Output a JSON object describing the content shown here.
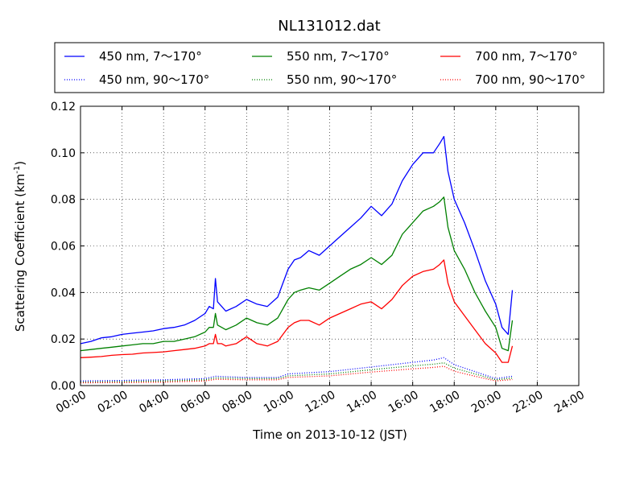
{
  "chart_data": {
    "type": "line",
    "title": "NL131012.dat",
    "xlabel": "Time on 2013-10-12 (JST)",
    "ylabel_main": "Scattering Coefficient (km",
    "ylabel_sup": "-1",
    "ylabel_end": ")",
    "xlim": [
      0,
      24
    ],
    "ylim": [
      0,
      0.12
    ],
    "grid": true,
    "legend_position": "top",
    "x_ticks": [
      0,
      2,
      4,
      6,
      8,
      10,
      12,
      14,
      16,
      18,
      20,
      22,
      24
    ],
    "x_tick_labels": [
      "00:00",
      "02:00",
      "04:00",
      "06:00",
      "08:00",
      "10:00",
      "12:00",
      "14:00",
      "16:00",
      "18:00",
      "20:00",
      "22:00",
      "24:00"
    ],
    "y_ticks": [
      0,
      0.02,
      0.04,
      0.06,
      0.08,
      0.1,
      0.12
    ],
    "y_tick_labels": [
      "0.00",
      "0.02",
      "0.04",
      "0.06",
      "0.08",
      "0.10",
      "0.12"
    ],
    "series": [
      {
        "name": "450 nm, 7～170°",
        "color": "#0000ff",
        "style": "solid",
        "x": [
          0,
          0.5,
          1,
          1.5,
          2,
          2.5,
          3,
          3.5,
          4,
          4.5,
          5,
          5.5,
          6,
          6.2,
          6.4,
          6.5,
          6.6,
          6.8,
          7,
          7.5,
          8,
          8.5,
          9,
          9.5,
          10,
          10.3,
          10.6,
          11,
          11.5,
          12,
          12.5,
          13,
          13.5,
          14,
          14.5,
          15,
          15.5,
          16,
          16.5,
          17,
          17.3,
          17.5,
          17.7,
          18,
          18.5,
          19,
          19.5,
          20,
          20.3,
          20.6,
          20.8
        ],
        "y": [
          0.018,
          0.019,
          0.0205,
          0.021,
          0.022,
          0.0225,
          0.023,
          0.0235,
          0.0245,
          0.025,
          0.026,
          0.028,
          0.031,
          0.034,
          0.033,
          0.046,
          0.036,
          0.034,
          0.032,
          0.034,
          0.037,
          0.035,
          0.034,
          0.038,
          0.05,
          0.054,
          0.055,
          0.058,
          0.056,
          0.06,
          0.064,
          0.068,
          0.072,
          0.077,
          0.073,
          0.078,
          0.088,
          0.095,
          0.1,
          0.1,
          0.104,
          0.107,
          0.092,
          0.08,
          0.07,
          0.058,
          0.045,
          0.035,
          0.025,
          0.022,
          0.041
        ]
      },
      {
        "name": "550 nm, 7～170°",
        "color": "#008000",
        "style": "solid",
        "x": [
          0,
          0.5,
          1,
          1.5,
          2,
          2.5,
          3,
          3.5,
          4,
          4.5,
          5,
          5.5,
          6,
          6.2,
          6.4,
          6.5,
          6.6,
          6.8,
          7,
          7.5,
          8,
          8.5,
          9,
          9.5,
          10,
          10.3,
          10.6,
          11,
          11.5,
          12,
          12.5,
          13,
          13.5,
          14,
          14.5,
          15,
          15.5,
          16,
          16.5,
          17,
          17.3,
          17.5,
          17.7,
          18,
          18.5,
          19,
          19.5,
          20,
          20.3,
          20.6,
          20.8
        ],
        "y": [
          0.015,
          0.0155,
          0.016,
          0.0165,
          0.017,
          0.0175,
          0.018,
          0.018,
          0.019,
          0.019,
          0.02,
          0.021,
          0.023,
          0.025,
          0.025,
          0.031,
          0.026,
          0.025,
          0.024,
          0.026,
          0.029,
          0.027,
          0.026,
          0.029,
          0.037,
          0.04,
          0.041,
          0.042,
          0.041,
          0.044,
          0.047,
          0.05,
          0.052,
          0.055,
          0.052,
          0.056,
          0.065,
          0.07,
          0.075,
          0.077,
          0.079,
          0.081,
          0.068,
          0.058,
          0.05,
          0.04,
          0.032,
          0.025,
          0.016,
          0.015,
          0.028
        ]
      },
      {
        "name": "700 nm, 7～170°",
        "color": "#ff0000",
        "style": "solid",
        "x": [
          0,
          0.5,
          1,
          1.5,
          2,
          2.5,
          3,
          3.5,
          4,
          4.5,
          5,
          5.5,
          6,
          6.2,
          6.4,
          6.5,
          6.6,
          6.8,
          7,
          7.5,
          8,
          8.5,
          9,
          9.5,
          10,
          10.3,
          10.6,
          11,
          11.5,
          12,
          12.5,
          13,
          13.5,
          14,
          14.5,
          15,
          15.5,
          16,
          16.5,
          17,
          17.3,
          17.5,
          17.7,
          18,
          18.5,
          19,
          19.5,
          20,
          20.3,
          20.6,
          20.8
        ],
        "y": [
          0.012,
          0.0122,
          0.0125,
          0.013,
          0.0133,
          0.0135,
          0.014,
          0.0142,
          0.0145,
          0.015,
          0.0155,
          0.016,
          0.017,
          0.018,
          0.018,
          0.022,
          0.018,
          0.018,
          0.017,
          0.018,
          0.021,
          0.018,
          0.017,
          0.019,
          0.025,
          0.027,
          0.028,
          0.028,
          0.026,
          0.029,
          0.031,
          0.033,
          0.035,
          0.036,
          0.033,
          0.037,
          0.043,
          0.047,
          0.049,
          0.05,
          0.052,
          0.054,
          0.044,
          0.036,
          0.03,
          0.024,
          0.018,
          0.014,
          0.01,
          0.01,
          0.017
        ]
      },
      {
        "name": "450 nm, 90～170°",
        "color": "#0000ff",
        "style": "dotted",
        "x": [
          0,
          2,
          4,
          6,
          6.5,
          8,
          9.5,
          10,
          12,
          14,
          16,
          17,
          17.5,
          18,
          19,
          20,
          20.8
        ],
        "y": [
          0.002,
          0.0022,
          0.0025,
          0.003,
          0.004,
          0.0035,
          0.0035,
          0.005,
          0.006,
          0.008,
          0.01,
          0.011,
          0.012,
          0.009,
          0.006,
          0.003,
          0.004
        ]
      },
      {
        "name": "550 nm, 90～170°",
        "color": "#008000",
        "style": "dotted",
        "x": [
          0,
          2,
          4,
          6,
          6.5,
          8,
          9.5,
          10,
          12,
          14,
          16,
          17,
          17.5,
          18,
          19,
          20,
          20.8
        ],
        "y": [
          0.0015,
          0.0017,
          0.002,
          0.0025,
          0.0033,
          0.003,
          0.003,
          0.0042,
          0.005,
          0.0068,
          0.0085,
          0.0092,
          0.0098,
          0.0075,
          0.005,
          0.0025,
          0.0032
        ]
      },
      {
        "name": "700 nm, 90～170°",
        "color": "#ff0000",
        "style": "dotted",
        "x": [
          0,
          2,
          4,
          6,
          6.5,
          8,
          9.5,
          10,
          12,
          14,
          16,
          17,
          17.5,
          18,
          19,
          20,
          20.8
        ],
        "y": [
          0.0012,
          0.0013,
          0.0015,
          0.002,
          0.0027,
          0.0025,
          0.0025,
          0.0035,
          0.0042,
          0.0058,
          0.0072,
          0.0078,
          0.0083,
          0.0062,
          0.004,
          0.002,
          0.0026
        ]
      }
    ]
  }
}
